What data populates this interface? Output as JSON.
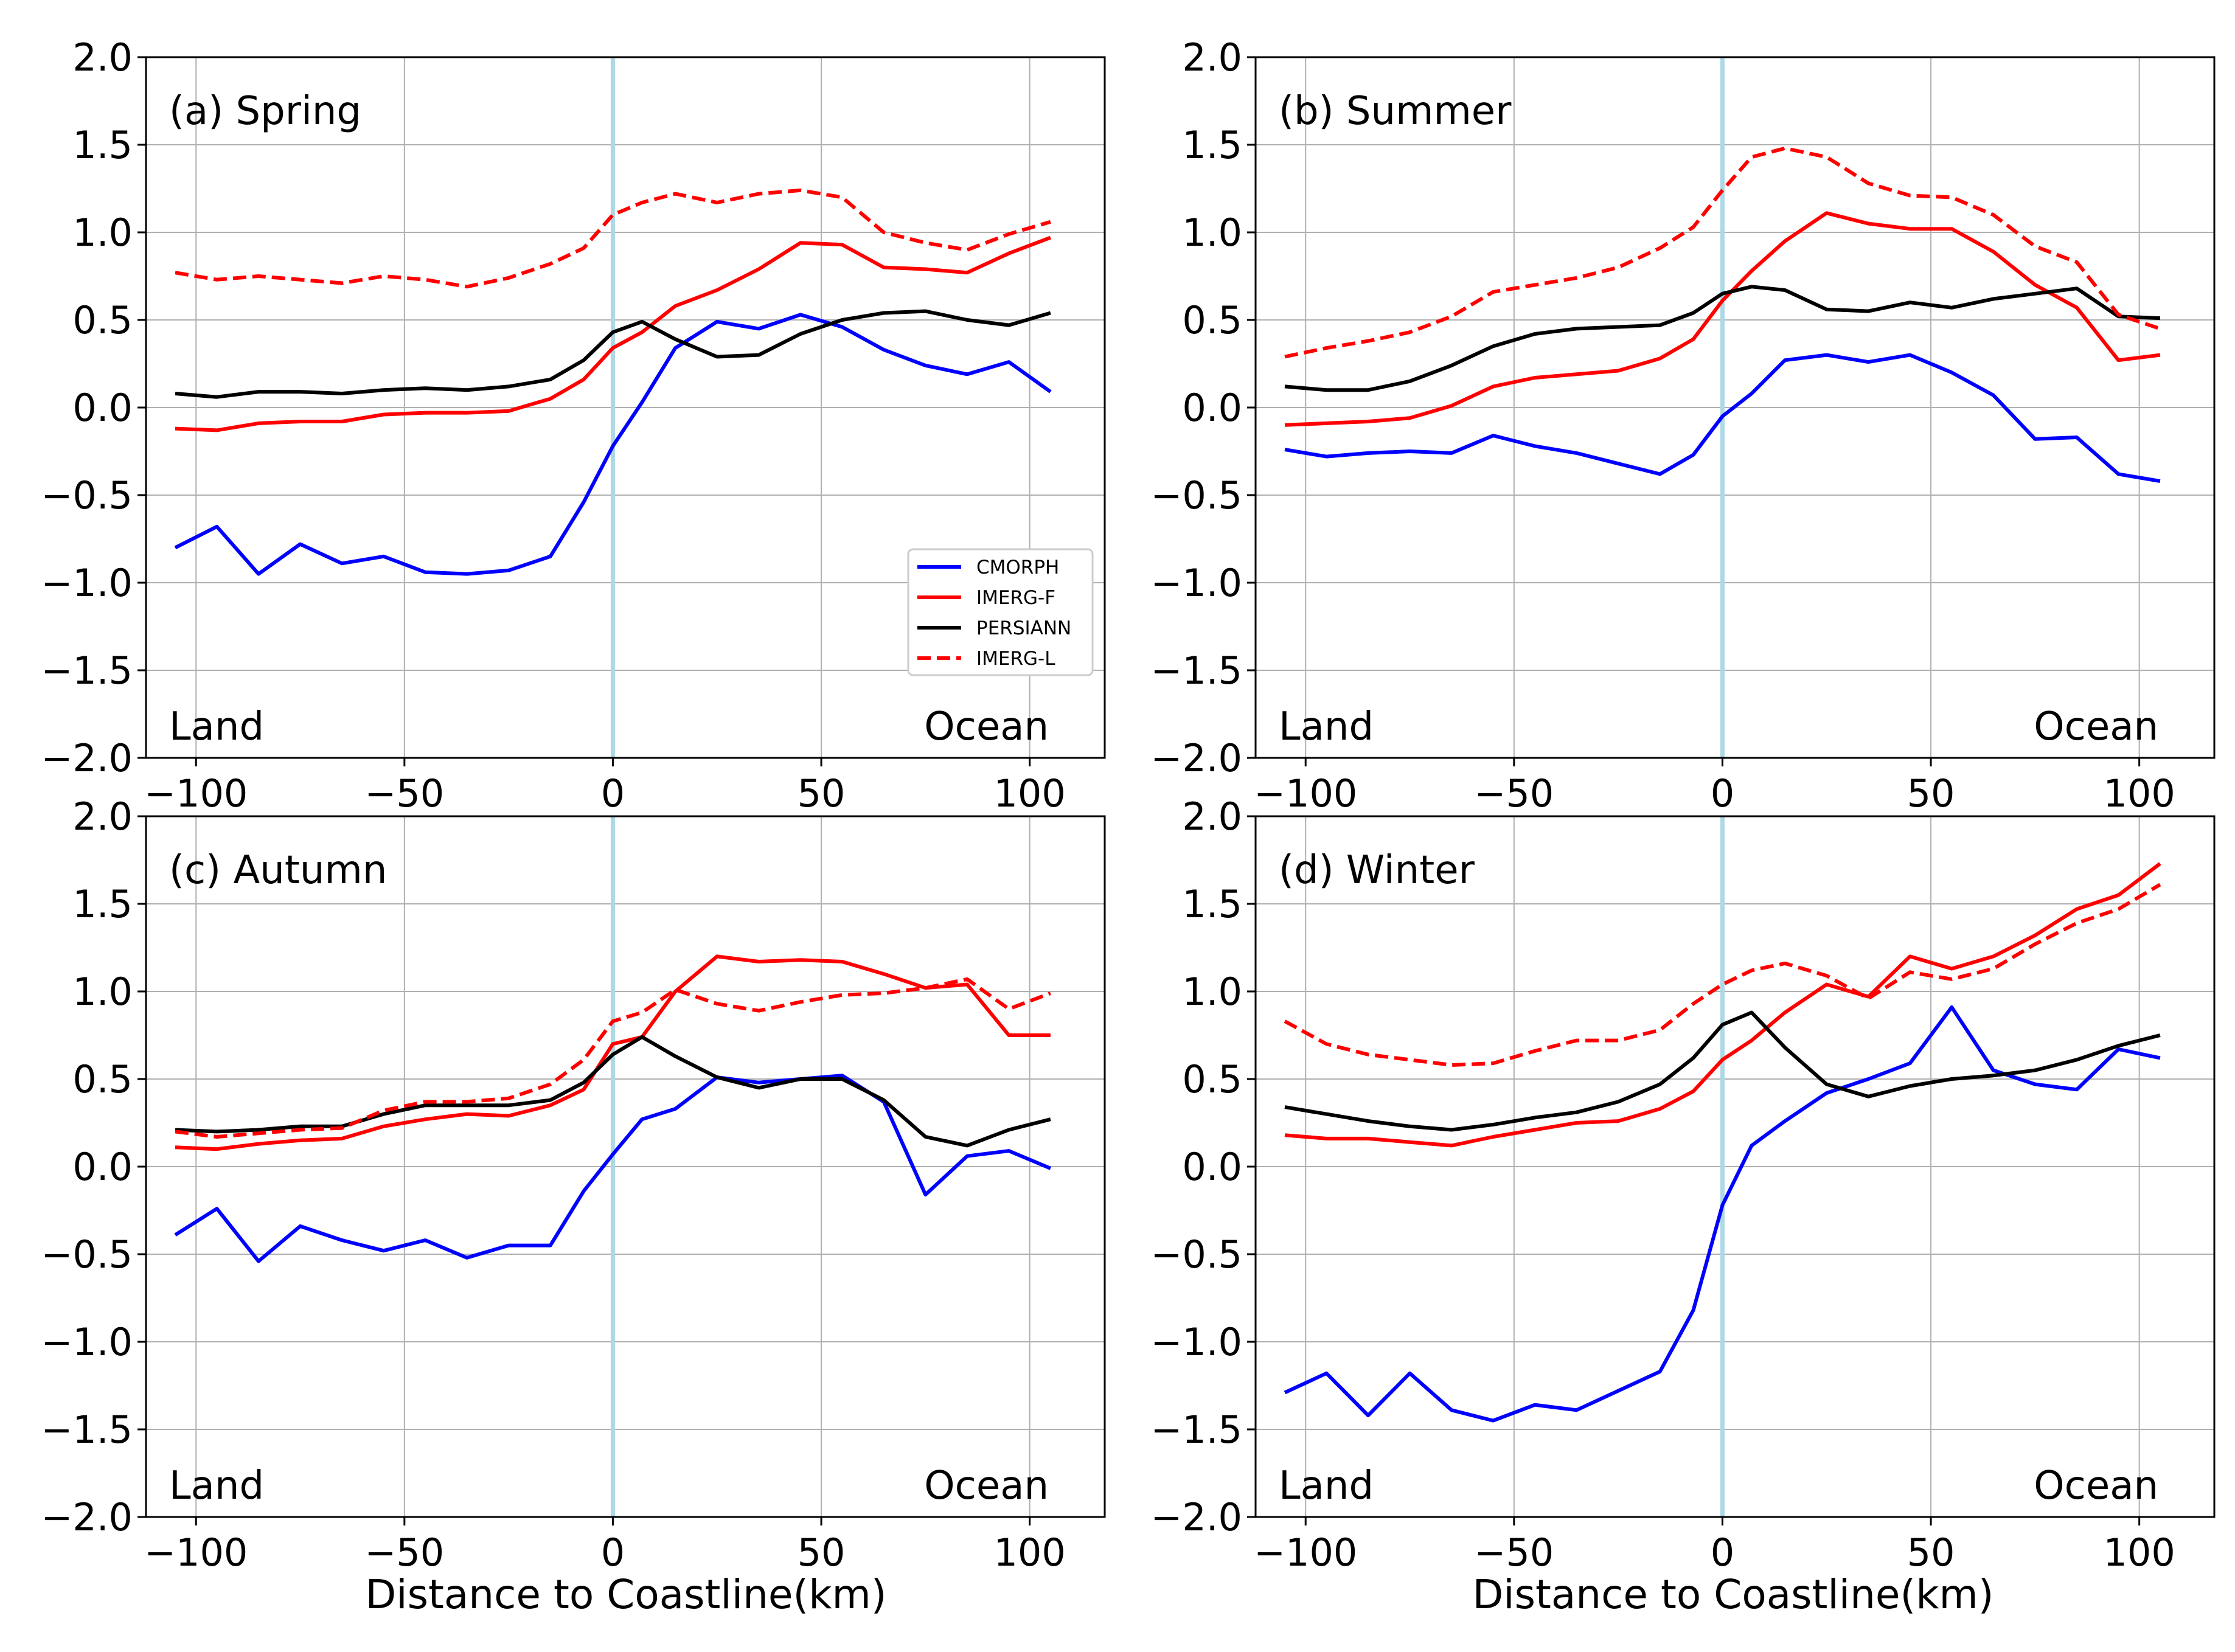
{
  "figure": {
    "xlabel": "Distance to Coastline(km)",
    "land_label": "Land",
    "ocean_label": "Ocean"
  },
  "legend": {
    "entries": [
      {
        "name": "CMORPH",
        "color": "#0000ff",
        "dash": false
      },
      {
        "name": "IMERG-F",
        "color": "#ff0000",
        "dash": false
      },
      {
        "name": "PERSIANN",
        "color": "#000000",
        "dash": false
      },
      {
        "name": "IMERG-L",
        "color": "#ff0000",
        "dash": true
      }
    ]
  },
  "chart_data": [
    {
      "type": "line",
      "title": "(a) Spring",
      "xlabel": "",
      "ylabel": "",
      "xlim": [
        -112,
        118
      ],
      "ylim": [
        -2.0,
        2.0
      ],
      "xticks": [
        -100,
        -50,
        0,
        50,
        100
      ],
      "yticks": [
        -2.0,
        -1.5,
        -1.0,
        -0.5,
        0.0,
        0.5,
        1.0,
        1.5,
        2.0
      ],
      "grid": true,
      "legend": "lower-right",
      "series": [
        {
          "name": "CMORPH",
          "color": "#0000ff",
          "dash": false,
          "x": [
            -105,
            -95,
            -85,
            -75,
            -65,
            -55,
            -45,
            -35,
            -25,
            -15,
            -7,
            0,
            7,
            15,
            25,
            35,
            45,
            55,
            65,
            75,
            85,
            95,
            105
          ],
          "values": [
            -0.8,
            -0.68,
            -0.95,
            -0.78,
            -0.89,
            -0.85,
            -0.94,
            -0.95,
            -0.93,
            -0.85,
            -0.54,
            -0.22,
            0.03,
            0.34,
            0.49,
            0.45,
            0.53,
            0.46,
            0.33,
            0.24,
            0.19,
            0.26,
            0.09
          ]
        },
        {
          "name": "IMERG-F",
          "color": "#ff0000",
          "dash": false,
          "x": [
            -105,
            -95,
            -85,
            -75,
            -65,
            -55,
            -45,
            -35,
            -25,
            -15,
            -7,
            0,
            7,
            15,
            25,
            35,
            45,
            55,
            65,
            75,
            85,
            95,
            105
          ],
          "values": [
            -0.12,
            -0.13,
            -0.09,
            -0.08,
            -0.08,
            -0.04,
            -0.03,
            -0.03,
            -0.02,
            0.05,
            0.16,
            0.34,
            0.43,
            0.58,
            0.67,
            0.79,
            0.94,
            0.93,
            0.8,
            0.79,
            0.77,
            0.88,
            0.97
          ]
        },
        {
          "name": "PERSIANN",
          "color": "#000000",
          "dash": false,
          "x": [
            -105,
            -95,
            -85,
            -75,
            -65,
            -55,
            -45,
            -35,
            -25,
            -15,
            -7,
            0,
            7,
            15,
            25,
            35,
            45,
            55,
            65,
            75,
            85,
            95,
            105
          ],
          "values": [
            0.08,
            0.06,
            0.09,
            0.09,
            0.08,
            0.1,
            0.11,
            0.1,
            0.12,
            0.16,
            0.27,
            0.43,
            0.49,
            0.39,
            0.29,
            0.3,
            0.42,
            0.5,
            0.54,
            0.55,
            0.5,
            0.47,
            0.54
          ]
        },
        {
          "name": "IMERG-L",
          "color": "#ff0000",
          "dash": true,
          "x": [
            -105,
            -95,
            -85,
            -75,
            -65,
            -55,
            -45,
            -35,
            -25,
            -15,
            -7,
            0,
            7,
            15,
            25,
            35,
            45,
            55,
            65,
            75,
            85,
            95,
            105
          ],
          "values": [
            0.77,
            0.73,
            0.75,
            0.73,
            0.71,
            0.75,
            0.73,
            0.69,
            0.74,
            0.82,
            0.91,
            1.1,
            1.17,
            1.22,
            1.17,
            1.22,
            1.24,
            1.2,
            1.0,
            0.94,
            0.9,
            0.99,
            1.06
          ]
        }
      ]
    },
    {
      "type": "line",
      "title": "(b) Summer",
      "xlabel": "",
      "ylabel": "",
      "xlim": [
        -112,
        118
      ],
      "ylim": [
        -2.0,
        2.0
      ],
      "xticks": [
        -100,
        -50,
        0,
        50,
        100
      ],
      "yticks": [
        -2.0,
        -1.5,
        -1.0,
        -0.5,
        0.0,
        0.5,
        1.0,
        1.5,
        2.0
      ],
      "grid": true,
      "series": [
        {
          "name": "CMORPH",
          "color": "#0000ff",
          "dash": false,
          "x": [
            -105,
            -95,
            -85,
            -75,
            -65,
            -55,
            -45,
            -35,
            -25,
            -15,
            -7,
            0,
            7,
            15,
            25,
            35,
            45,
            55,
            65,
            75,
            85,
            95,
            105
          ],
          "values": [
            -0.24,
            -0.28,
            -0.26,
            -0.25,
            -0.26,
            -0.16,
            -0.22,
            -0.26,
            -0.32,
            -0.38,
            -0.27,
            -0.05,
            0.08,
            0.27,
            0.3,
            0.26,
            0.3,
            0.2,
            0.07,
            -0.18,
            -0.17,
            -0.38,
            -0.42
          ]
        },
        {
          "name": "IMERG-F",
          "color": "#ff0000",
          "dash": false,
          "x": [
            -105,
            -95,
            -85,
            -75,
            -65,
            -55,
            -45,
            -35,
            -25,
            -15,
            -7,
            0,
            7,
            15,
            25,
            35,
            45,
            55,
            65,
            75,
            85,
            95,
            105
          ],
          "values": [
            -0.1,
            -0.09,
            -0.08,
            -0.06,
            0.01,
            0.12,
            0.17,
            0.19,
            0.21,
            0.28,
            0.39,
            0.61,
            0.78,
            0.95,
            1.11,
            1.05,
            1.02,
            1.02,
            0.89,
            0.7,
            0.57,
            0.27,
            0.3
          ]
        },
        {
          "name": "PERSIANN",
          "color": "#000000",
          "dash": false,
          "x": [
            -105,
            -95,
            -85,
            -75,
            -65,
            -55,
            -45,
            -35,
            -25,
            -15,
            -7,
            0,
            7,
            15,
            25,
            35,
            45,
            55,
            65,
            75,
            85,
            95,
            105
          ],
          "values": [
            0.12,
            0.1,
            0.1,
            0.15,
            0.24,
            0.35,
            0.42,
            0.45,
            0.46,
            0.47,
            0.54,
            0.65,
            0.69,
            0.67,
            0.56,
            0.55,
            0.6,
            0.57,
            0.62,
            0.65,
            0.68,
            0.52,
            0.51
          ]
        },
        {
          "name": "IMERG-L",
          "color": "#ff0000",
          "dash": true,
          "x": [
            -105,
            -95,
            -85,
            -75,
            -65,
            -55,
            -45,
            -35,
            -25,
            -15,
            -7,
            0,
            7,
            15,
            25,
            35,
            45,
            55,
            65,
            75,
            85,
            95,
            105
          ],
          "values": [
            0.29,
            0.34,
            0.38,
            0.43,
            0.52,
            0.66,
            0.7,
            0.74,
            0.8,
            0.91,
            1.03,
            1.24,
            1.43,
            1.48,
            1.43,
            1.28,
            1.21,
            1.2,
            1.1,
            0.92,
            0.83,
            0.53,
            0.45
          ]
        }
      ]
    },
    {
      "type": "line",
      "title": "(c) Autumn",
      "xlabel": "Distance to Coastline(km)",
      "ylabel": "",
      "xlim": [
        -112,
        118
      ],
      "ylim": [
        -2.0,
        2.0
      ],
      "xticks": [
        -100,
        -50,
        0,
        50,
        100
      ],
      "yticks": [
        -2.0,
        -1.5,
        -1.0,
        -0.5,
        0.0,
        0.5,
        1.0,
        1.5,
        2.0
      ],
      "grid": true,
      "series": [
        {
          "name": "CMORPH",
          "color": "#0000ff",
          "dash": false,
          "x": [
            -105,
            -95,
            -85,
            -75,
            -65,
            -55,
            -45,
            -35,
            -25,
            -15,
            -7,
            0,
            7,
            15,
            25,
            35,
            45,
            55,
            65,
            75,
            85,
            95,
            105
          ],
          "values": [
            -0.39,
            -0.24,
            -0.54,
            -0.34,
            -0.42,
            -0.48,
            -0.42,
            -0.52,
            -0.45,
            -0.45,
            -0.14,
            0.07,
            0.27,
            0.33,
            0.51,
            0.48,
            0.5,
            0.52,
            0.37,
            -0.16,
            0.06,
            0.09,
            -0.01
          ]
        },
        {
          "name": "IMERG-F",
          "color": "#ff0000",
          "dash": false,
          "x": [
            -105,
            -95,
            -85,
            -75,
            -65,
            -55,
            -45,
            -35,
            -25,
            -15,
            -7,
            0,
            7,
            15,
            25,
            35,
            45,
            55,
            65,
            75,
            85,
            95,
            105
          ],
          "values": [
            0.11,
            0.1,
            0.13,
            0.15,
            0.16,
            0.23,
            0.27,
            0.3,
            0.29,
            0.35,
            0.44,
            0.7,
            0.74,
            1.0,
            1.2,
            1.17,
            1.18,
            1.17,
            1.1,
            1.02,
            1.04,
            0.75,
            0.75
          ]
        },
        {
          "name": "PERSIANN",
          "color": "#000000",
          "dash": false,
          "x": [
            -105,
            -95,
            -85,
            -75,
            -65,
            -55,
            -45,
            -35,
            -25,
            -15,
            -7,
            0,
            7,
            15,
            25,
            35,
            45,
            55,
            65,
            75,
            85,
            95,
            105
          ],
          "values": [
            0.21,
            0.2,
            0.21,
            0.23,
            0.23,
            0.3,
            0.35,
            0.35,
            0.35,
            0.38,
            0.48,
            0.64,
            0.74,
            0.63,
            0.51,
            0.45,
            0.5,
            0.5,
            0.38,
            0.17,
            0.12,
            0.21,
            0.27
          ]
        },
        {
          "name": "IMERG-L",
          "color": "#ff0000",
          "dash": true,
          "x": [
            -105,
            -95,
            -85,
            -75,
            -65,
            -55,
            -45,
            -35,
            -25,
            -15,
            -7,
            0,
            7,
            15,
            25,
            35,
            45,
            55,
            65,
            75,
            85,
            95,
            105
          ],
          "values": [
            0.2,
            0.17,
            0.19,
            0.21,
            0.22,
            0.32,
            0.37,
            0.37,
            0.39,
            0.47,
            0.61,
            0.83,
            0.88,
            1.01,
            0.93,
            0.89,
            0.94,
            0.98,
            0.99,
            1.02,
            1.07,
            0.9,
            0.99
          ]
        }
      ]
    },
    {
      "type": "line",
      "title": "(d) Winter",
      "xlabel": "Distance to Coastline(km)",
      "ylabel": "",
      "xlim": [
        -112,
        118
      ],
      "ylim": [
        -2.0,
        2.0
      ],
      "xticks": [
        -100,
        -50,
        0,
        50,
        100
      ],
      "yticks": [
        -2.0,
        -1.5,
        -1.0,
        -0.5,
        0.0,
        0.5,
        1.0,
        1.5,
        2.0
      ],
      "grid": true,
      "series": [
        {
          "name": "CMORPH",
          "color": "#0000ff",
          "dash": false,
          "x": [
            -105,
            -95,
            -85,
            -75,
            -65,
            -55,
            -45,
            -35,
            -25,
            -15,
            -7,
            0,
            7,
            15,
            25,
            35,
            45,
            55,
            65,
            75,
            85,
            95,
            105
          ],
          "values": [
            -1.29,
            -1.18,
            -1.42,
            -1.18,
            -1.39,
            -1.45,
            -1.36,
            -1.39,
            -1.28,
            -1.17,
            -0.82,
            -0.22,
            0.12,
            0.26,
            0.42,
            0.5,
            0.59,
            0.91,
            0.55,
            0.47,
            0.44,
            0.67,
            0.62
          ]
        },
        {
          "name": "IMERG-F",
          "color": "#ff0000",
          "dash": false,
          "x": [
            -105,
            -95,
            -85,
            -75,
            -65,
            -55,
            -45,
            -35,
            -25,
            -15,
            -7,
            0,
            7,
            15,
            25,
            35,
            45,
            55,
            65,
            75,
            85,
            95,
            105
          ],
          "values": [
            0.18,
            0.16,
            0.16,
            0.14,
            0.12,
            0.17,
            0.21,
            0.25,
            0.26,
            0.33,
            0.43,
            0.61,
            0.72,
            0.88,
            1.04,
            0.97,
            1.2,
            1.13,
            1.2,
            1.32,
            1.47,
            1.55,
            1.73
          ]
        },
        {
          "name": "PERSIANN",
          "color": "#000000",
          "dash": false,
          "x": [
            -105,
            -95,
            -85,
            -75,
            -65,
            -55,
            -45,
            -35,
            -25,
            -15,
            -7,
            0,
            7,
            15,
            25,
            35,
            45,
            55,
            65,
            75,
            85,
            95,
            105
          ],
          "values": [
            0.34,
            0.3,
            0.26,
            0.23,
            0.21,
            0.24,
            0.28,
            0.31,
            0.37,
            0.47,
            0.62,
            0.81,
            0.88,
            0.68,
            0.47,
            0.4,
            0.46,
            0.5,
            0.52,
            0.55,
            0.61,
            0.69,
            0.75
          ]
        },
        {
          "name": "IMERG-L",
          "color": "#ff0000",
          "dash": true,
          "x": [
            -105,
            -95,
            -85,
            -75,
            -65,
            -55,
            -45,
            -35,
            -25,
            -15,
            -7,
            0,
            7,
            15,
            25,
            35,
            45,
            55,
            65,
            75,
            85,
            95,
            105
          ],
          "values": [
            0.83,
            0.7,
            0.64,
            0.61,
            0.58,
            0.59,
            0.66,
            0.72,
            0.72,
            0.78,
            0.93,
            1.04,
            1.12,
            1.16,
            1.09,
            0.96,
            1.11,
            1.07,
            1.13,
            1.27,
            1.39,
            1.47,
            1.61
          ]
        }
      ]
    }
  ]
}
